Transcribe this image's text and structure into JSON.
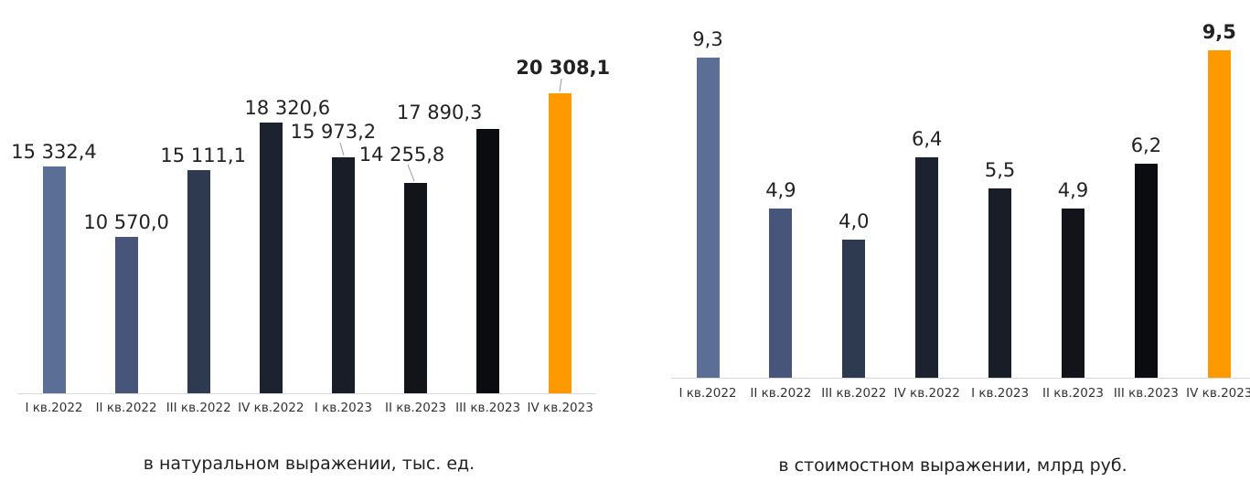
{
  "chart_data": [
    {
      "type": "bar",
      "title": "в натуральном выражении, тыс. ед.",
      "categories": [
        "I кв.2022",
        "II кв.2022",
        "III кв.2022",
        "IV кв.2022",
        "I кв.2023",
        "II кв.2023",
        "III кв.2023",
        "IV кв.2023"
      ],
      "values": [
        15332.4,
        10570.0,
        15111.1,
        18320.6,
        15973.2,
        14255.8,
        17890.3,
        20308.1
      ],
      "value_labels": [
        "15 332,4",
        "10 570,0",
        "15 111,1",
        "18 320,6",
        "15 973,2",
        "14 255,8",
        "17 890,3",
        "20 308,1"
      ],
      "colors": [
        "#5b6f96",
        "#47557a",
        "#2e3a4f",
        "#1d2230",
        "#191d27",
        "#121419",
        "#0b0c0f",
        "#ff9900"
      ]
    },
    {
      "type": "bar",
      "title": "в стоимостном выражении, млрд руб.",
      "categories": [
        "I кв.2022",
        "II кв.2022",
        "III кв.2022",
        "IV кв.2022",
        "I кв.2023",
        "II кв.2023",
        "III кв.2023",
        "IV кв.2023"
      ],
      "values": [
        9.3,
        4.9,
        4.0,
        6.4,
        5.5,
        4.9,
        6.2,
        9.5
      ],
      "value_labels": [
        "9,3",
        "4,9",
        "4,0",
        "6,4",
        "5,5",
        "4,9",
        "6,2",
        "9,5"
      ],
      "colors": [
        "#5b6f96",
        "#47557a",
        "#2e3a4f",
        "#1d2230",
        "#191d27",
        "#121419",
        "#0b0c0f",
        "#ff9900"
      ]
    }
  ]
}
